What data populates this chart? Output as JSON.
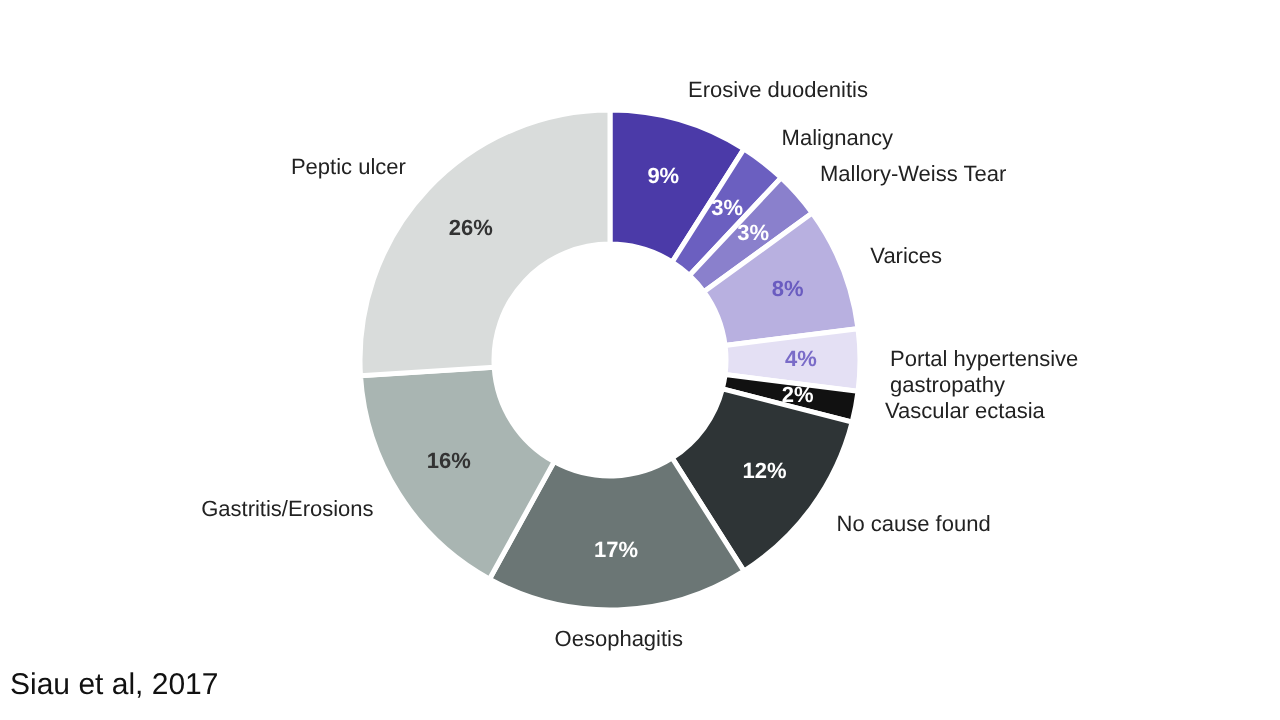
{
  "chart_data": {
    "type": "donut",
    "categories": [
      "Erosive duodenitis",
      "Malignancy",
      "Mallory-Weiss Tear",
      "Varices",
      "Portal hypertensive gastropathy",
      "Vascular ectasia",
      "No cause found",
      "Oesophagitis",
      "Gastritis/Erosions",
      "Peptic ulcer"
    ],
    "values": [
      9,
      3,
      3,
      8,
      4,
      2,
      12,
      17,
      16,
      26
    ],
    "value_labels": [
      "9%",
      "3%",
      "3%",
      "8%",
      "4%",
      "2%",
      "12%",
      "17%",
      "16%",
      "26%"
    ],
    "colors": [
      "#4b3aa8",
      "#6b5fc0",
      "#8a80cc",
      "#b8b0e0",
      "#e4e0f4",
      "#111111",
      "#2e3436",
      "#6b7675",
      "#a9b5b2",
      "#d9dcdb"
    ],
    "annotations": [
      "Siau et al, 2017"
    ]
  }
}
